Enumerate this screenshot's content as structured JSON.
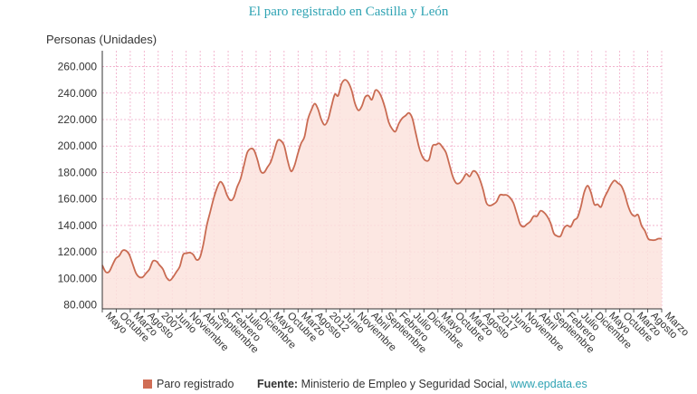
{
  "page": {
    "title": "El paro registrado en Castilla y León",
    "legend_label": "Paro registrado",
    "source_label": "Fuente:",
    "source_text": "Ministerio de Empleo y Seguridad Social,",
    "source_link": "www.epdata.es"
  },
  "colors": {
    "line": "#c96b52",
    "area": "#fbe3dd",
    "grid": "#f0a8c6",
    "title": "#2fa3b3"
  },
  "chart_data": {
    "type": "area",
    "ylabel": "Personas (Unidades)",
    "ylim": [
      77000,
      272000
    ],
    "yticks": [
      80000,
      100000,
      120000,
      140000,
      160000,
      180000,
      200000,
      220000,
      240000,
      260000
    ],
    "ytick_labels": [
      "80.000",
      "100.000",
      "120.000",
      "140.000",
      "160.000",
      "180.000",
      "200.000",
      "220.000",
      "240.000",
      "260.000"
    ],
    "grid": true,
    "x_start": "2005-05",
    "x_end": "2019-03",
    "x_tick_labels": [
      "Mayo",
      "Octubre",
      "Marzo",
      "Agosto",
      "2007",
      "Junio",
      "Noviembre",
      "Abril",
      "Septiembre",
      "Febrero",
      "Julio",
      "Diciembre",
      "Mayo",
      "Octubre",
      "Marzo",
      "Agosto",
      "2012",
      "Junio",
      "Noviembre",
      "Abril",
      "Septiembre",
      "Febrero",
      "Julio",
      "Diciembre",
      "Mayo",
      "Octubre",
      "Marzo",
      "Agosto",
      "2017",
      "Junio",
      "Noviembre",
      "Abril",
      "Septiembre",
      "Febrero",
      "Julio",
      "Diciembre",
      "Mayo",
      "Octubre",
      "Marzo",
      "Agosto",
      "Marzo"
    ],
    "series": [
      {
        "name": "Paro registrado",
        "points": [
          [
            "2005-05",
            110000
          ],
          [
            "2005-06",
            105000
          ],
          [
            "2005-07",
            105000
          ],
          [
            "2005-08",
            110000
          ],
          [
            "2005-09",
            115000
          ],
          [
            "2005-10",
            117000
          ],
          [
            "2005-11",
            121000
          ],
          [
            "2005-12",
            121000
          ],
          [
            "2006-01",
            118000
          ],
          [
            "2006-02",
            111000
          ],
          [
            "2006-03",
            104000
          ],
          [
            "2006-04",
            101000
          ],
          [
            "2006-05",
            101000
          ],
          [
            "2006-06",
            104000
          ],
          [
            "2006-07",
            107000
          ],
          [
            "2006-08",
            113000
          ],
          [
            "2006-09",
            113000
          ],
          [
            "2006-10",
            110000
          ],
          [
            "2006-11",
            107000
          ],
          [
            "2006-12",
            101000
          ],
          [
            "2007-01",
            98500
          ],
          [
            "2007-02",
            101000
          ],
          [
            "2007-03",
            105000
          ],
          [
            "2007-04",
            109000
          ],
          [
            "2007-05",
            118000
          ],
          [
            "2007-06",
            119000
          ],
          [
            "2007-07",
            119500
          ],
          [
            "2007-08",
            118000
          ],
          [
            "2007-09",
            114000
          ],
          [
            "2007-10",
            116000
          ],
          [
            "2007-11",
            126000
          ],
          [
            "2007-12",
            140000
          ],
          [
            "2008-01",
            150000
          ],
          [
            "2008-02",
            160000
          ],
          [
            "2008-03",
            168000
          ],
          [
            "2008-04",
            173000
          ],
          [
            "2008-05",
            170000
          ],
          [
            "2008-06",
            163000
          ],
          [
            "2008-07",
            159000
          ],
          [
            "2008-08",
            161000
          ],
          [
            "2008-09",
            169000
          ],
          [
            "2008-10",
            175000
          ],
          [
            "2008-11",
            185000
          ],
          [
            "2008-12",
            195000
          ],
          [
            "2009-01",
            198000
          ],
          [
            "2009-02",
            197000
          ],
          [
            "2009-03",
            190000
          ],
          [
            "2009-04",
            181000
          ],
          [
            "2009-05",
            180000
          ],
          [
            "2009-06",
            184000
          ],
          [
            "2009-07",
            188000
          ],
          [
            "2009-08",
            196000
          ],
          [
            "2009-09",
            204000
          ],
          [
            "2009-10",
            204000
          ],
          [
            "2009-11",
            200000
          ],
          [
            "2009-12",
            189000
          ],
          [
            "2010-01",
            181000
          ],
          [
            "2010-02",
            185000
          ],
          [
            "2010-03",
            194000
          ],
          [
            "2010-04",
            202000
          ],
          [
            "2010-05",
            207000
          ],
          [
            "2010-06",
            220000
          ],
          [
            "2010-07",
            227000
          ],
          [
            "2010-08",
            232000
          ],
          [
            "2010-09",
            228000
          ],
          [
            "2010-10",
            220000
          ],
          [
            "2010-11",
            216000
          ],
          [
            "2010-12",
            220000
          ],
          [
            "2011-01",
            230000
          ],
          [
            "2011-02",
            239000
          ],
          [
            "2011-03",
            238000
          ],
          [
            "2011-04",
            247000
          ],
          [
            "2011-05",
            250000
          ],
          [
            "2011-06",
            248000
          ],
          [
            "2011-07",
            242000
          ],
          [
            "2011-08",
            232000
          ],
          [
            "2011-09",
            227000
          ],
          [
            "2011-10",
            230000
          ],
          [
            "2011-11",
            237000
          ],
          [
            "2011-12",
            238000
          ],
          [
            "2012-01",
            235000
          ],
          [
            "2012-02",
            242000
          ],
          [
            "2012-03",
            241000
          ],
          [
            "2012-04",
            236000
          ],
          [
            "2012-05",
            228000
          ],
          [
            "2012-06",
            218000
          ],
          [
            "2012-07",
            213000
          ],
          [
            "2012-08",
            211000
          ],
          [
            "2012-09",
            217000
          ],
          [
            "2012-10",
            221000
          ],
          [
            "2012-11",
            223000
          ],
          [
            "2012-12",
            225000
          ],
          [
            "2013-01",
            221000
          ],
          [
            "2013-02",
            210000
          ],
          [
            "2013-03",
            199000
          ],
          [
            "2013-04",
            192000
          ],
          [
            "2013-05",
            189000
          ],
          [
            "2013-06",
            190000
          ],
          [
            "2013-07",
            200000
          ],
          [
            "2013-08",
            201000
          ],
          [
            "2013-09",
            202000
          ],
          [
            "2013-10",
            199000
          ],
          [
            "2013-11",
            195000
          ],
          [
            "2013-12",
            186000
          ],
          [
            "2014-01",
            177000
          ],
          [
            "2014-02",
            172000
          ],
          [
            "2014-03",
            172000
          ],
          [
            "2014-04",
            175000
          ],
          [
            "2014-05",
            179000
          ],
          [
            "2014-06",
            177000
          ],
          [
            "2014-07",
            181000
          ],
          [
            "2014-08",
            180000
          ],
          [
            "2014-09",
            175000
          ],
          [
            "2014-10",
            167000
          ],
          [
            "2014-11",
            157000
          ],
          [
            "2014-12",
            155000
          ],
          [
            "2015-01",
            156000
          ],
          [
            "2015-02",
            158000
          ],
          [
            "2015-03",
            163000
          ],
          [
            "2015-04",
            163000
          ],
          [
            "2015-05",
            163000
          ],
          [
            "2015-06",
            161000
          ],
          [
            "2015-07",
            157000
          ],
          [
            "2015-08",
            149000
          ],
          [
            "2015-09",
            141000
          ],
          [
            "2015-10",
            139000
          ],
          [
            "2015-11",
            141000
          ],
          [
            "2015-12",
            143000
          ],
          [
            "2016-01",
            147000
          ],
          [
            "2016-02",
            147000
          ],
          [
            "2016-03",
            151000
          ],
          [
            "2016-04",
            150000
          ],
          [
            "2016-05",
            147000
          ],
          [
            "2016-06",
            142000
          ],
          [
            "2016-07",
            134000
          ],
          [
            "2016-08",
            132000
          ],
          [
            "2016-09",
            132000
          ],
          [
            "2016-10",
            138000
          ],
          [
            "2016-11",
            140000
          ],
          [
            "2016-12",
            139000
          ],
          [
            "2017-01",
            144000
          ],
          [
            "2017-02",
            146000
          ],
          [
            "2017-03",
            154000
          ],
          [
            "2017-04",
            165000
          ],
          [
            "2017-05",
            170000
          ],
          [
            "2017-06",
            165000
          ],
          [
            "2017-07",
            156000
          ],
          [
            "2017-08",
            156000
          ],
          [
            "2017-09",
            154000
          ],
          [
            "2017-10",
            161000
          ],
          [
            "2017-11",
            166000
          ],
          [
            "2017-12",
            171000
          ],
          [
            "2018-01",
            174000
          ],
          [
            "2018-02",
            172000
          ],
          [
            "2018-03",
            170000
          ],
          [
            "2018-04",
            164000
          ],
          [
            "2018-05",
            155000
          ],
          [
            "2018-06",
            149000
          ],
          [
            "2018-07",
            147000
          ],
          [
            "2018-08",
            148000
          ],
          [
            "2018-09",
            140000
          ],
          [
            "2018-10",
            136000
          ],
          [
            "2018-11",
            130000
          ],
          [
            "2018-12",
            129000
          ],
          [
            "2019-01",
            129000
          ],
          [
            "2019-02",
            130000
          ],
          [
            "2019-03",
            130000
          ]
        ]
      }
    ]
  }
}
